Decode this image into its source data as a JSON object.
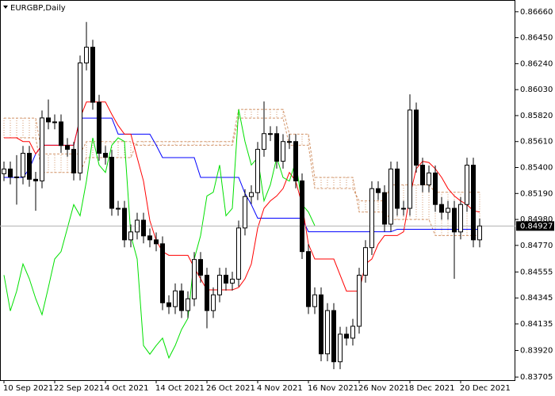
{
  "chart_data": {
    "type": "candlestick",
    "title": "EURGBP,Daily",
    "categories": [
      "10 Sep 2021",
      null,
      null,
      null,
      null,
      null,
      null,
      null,
      "22 Sep 2021",
      null,
      null,
      null,
      null,
      null,
      null,
      null,
      "4 Oct 2021",
      null,
      null,
      null,
      null,
      null,
      null,
      null,
      "14 Oct 2021",
      null,
      null,
      null,
      null,
      null,
      null,
      null,
      "26 Oct 2021",
      null,
      null,
      null,
      null,
      null,
      null,
      null,
      "4 Nov 2021",
      null,
      null,
      null,
      null,
      null,
      null,
      null,
      "16 Nov 2021",
      null,
      null,
      null,
      null,
      null,
      null,
      null,
      "26 Nov 2021",
      null,
      null,
      null,
      null,
      null,
      null,
      null,
      "8 Dec 2021",
      null,
      null,
      null,
      null,
      null,
      null,
      null,
      "20 Dec 2021",
      null,
      null,
      null
    ],
    "open": [
      0.8535,
      0.85388,
      0.85324,
      0.85324,
      0.85515,
      0.85305,
      0.85292,
      0.85801,
      0.85769,
      0.85769,
      0.85578,
      0.85547,
      0.85356,
      0.86246,
      0.86373,
      0.85928,
      0.85515,
      0.85483,
      0.8507,
      0.8507,
      0.84815,
      0.84879,
      0.84974,
      0.84847,
      0.84815,
      0.84783,
      0.84306,
      0.84275,
      0.84402,
      0.84243,
      0.84338,
      0.84656,
      0.84529,
      0.84243,
      0.8437,
      0.84529,
      0.84465,
      0.84497,
      0.84911,
      0.85165,
      0.85197,
      0.85547,
      0.85674,
      0.85674,
      0.85451,
      0.8561,
      0.8561,
      0.85292,
      0.8472,
      0.84275,
      0.8437,
      0.83893,
      0.84243,
      0.83829,
      0.84052,
      0.8402,
      0.84116,
      0.84529,
      0.84752,
      0.85229,
      0.85197,
      0.84942,
      0.85388,
      0.8507,
      0.8507,
      0.85865,
      0.85419,
      0.8526,
      0.85356,
      0.85101,
      0.85038,
      0.8507,
      0.84879,
      0.85101,
      0.85419,
      0.84815
    ],
    "high": [
      0.85448,
      0.85448,
      0.855,
      0.85575,
      0.85575,
      0.85365,
      0.85861,
      0.8595,
      0.85829,
      0.85829,
      0.85638,
      0.85607,
      0.86306,
      0.86577,
      0.86433,
      0.85988,
      0.85575,
      0.85543,
      0.8513,
      0.8513,
      0.84939,
      0.85034,
      0.85034,
      0.84907,
      0.84875,
      0.84843,
      0.84366,
      0.84462,
      0.84462,
      0.84398,
      0.84716,
      0.84716,
      0.84589,
      0.8443,
      0.84589,
      0.84589,
      0.84557,
      0.84971,
      0.85225,
      0.85257,
      0.85607,
      0.85934,
      0.85734,
      0.85734,
      0.8567,
      0.8567,
      0.8567,
      0.85352,
      0.8478,
      0.8443,
      0.8443,
      0.84303,
      0.84303,
      0.84112,
      0.84112,
      0.84176,
      0.84589,
      0.84812,
      0.85289,
      0.85289,
      0.85257,
      0.85448,
      0.85448,
      0.8513,
      0.85992,
      0.85925,
      0.85479,
      0.85416,
      0.85416,
      0.85161,
      0.8513,
      0.8513,
      0.85161,
      0.85479,
      0.85479,
      0.84987
    ],
    "low": [
      0.8529,
      0.85264,
      0.851,
      0.85264,
      0.85245,
      0.8505,
      0.85232,
      0.85709,
      0.85709,
      0.85518,
      0.85487,
      0.85296,
      0.85296,
      0.86186,
      0.85868,
      0.85455,
      0.85423,
      0.8501,
      0.8501,
      0.84755,
      0.84755,
      0.84819,
      0.84787,
      0.84755,
      0.84723,
      0.84246,
      0.84215,
      0.84215,
      0.84183,
      0.84183,
      0.84278,
      0.84469,
      0.841,
      0.84183,
      0.8431,
      0.84405,
      0.84405,
      0.84437,
      0.84851,
      0.85105,
      0.85137,
      0.85487,
      0.85614,
      0.85391,
      0.85391,
      0.8555,
      0.85232,
      0.8466,
      0.84215,
      0.84215,
      0.83833,
      0.83833,
      0.83769,
      0.83769,
      0.8396,
      0.8396,
      0.84056,
      0.84469,
      0.84692,
      0.85137,
      0.84882,
      0.84882,
      0.8501,
      0.8501,
      0.8501,
      0.85359,
      0.852,
      0.852,
      0.85041,
      0.84978,
      0.84978,
      0.845,
      0.84819,
      0.85041,
      0.84755,
      0.84755
    ],
    "close": [
      0.85388,
      0.85324,
      0.85324,
      0.85515,
      0.85305,
      0.85292,
      0.85801,
      0.85769,
      0.85769,
      0.85578,
      0.85547,
      0.85356,
      0.86246,
      0.86373,
      0.85928,
      0.85515,
      0.85483,
      0.8507,
      0.8507,
      0.84815,
      0.84879,
      0.84974,
      0.84847,
      0.84815,
      0.84783,
      0.84306,
      0.84275,
      0.84402,
      0.84243,
      0.84338,
      0.84656,
      0.84529,
      0.84243,
      0.8437,
      0.84529,
      0.84465,
      0.84497,
      0.84911,
      0.85165,
      0.85197,
      0.85547,
      0.85674,
      0.85674,
      0.85451,
      0.8561,
      0.8561,
      0.85292,
      0.8472,
      0.84275,
      0.8437,
      0.83893,
      0.84243,
      0.83829,
      0.84052,
      0.8402,
      0.84116,
      0.84529,
      0.84752,
      0.85229,
      0.85197,
      0.84942,
      0.85388,
      0.8507,
      0.8507,
      0.85865,
      0.85419,
      0.8526,
      0.85356,
      0.85101,
      0.85038,
      0.8507,
      0.84879,
      0.85101,
      0.85419,
      0.84815,
      0.84927
    ],
    "series": [
      {
        "color": "#d2956a",
        "style": "dashed",
        "values": [
          0.8564,
          0.8564,
          0.8564,
          0.8564,
          0.8564,
          0.8564,
          0.8536,
          0.8536,
          0.8536,
          0.8536,
          0.8536,
          0.8536,
          0.8536,
          0.8548,
          0.8548,
          0.8548,
          0.8548,
          0.8548,
          0.8548,
          0.8548,
          0.8548,
          0.8561,
          0.8561,
          0.8561,
          0.8561,
          0.8561,
          0.8561,
          0.8561,
          0.8561,
          0.8561,
          0.8561,
          0.8561,
          0.8561,
          0.8561,
          0.8561,
          0.8561,
          0.8561,
          0.8587,
          0.8587,
          0.8587,
          0.8587,
          0.8587,
          0.8587,
          0.8587,
          0.8587,
          0.8567,
          0.8567,
          0.8567,
          0.8567,
          0.8532,
          0.8532,
          0.8532,
          0.8532,
          0.8532,
          0.8532,
          0.8532,
          0.8504,
          0.8504,
          0.8504,
          0.8504,
          0.8504,
          0.8498,
          0.8498,
          0.8498,
          0.8498,
          0.8498,
          0.8498,
          0.8498,
          0.8485,
          0.8485,
          0.8485,
          0.8485,
          0.8485,
          0.8485,
          0.8485,
          0.8485
        ]
      },
      {
        "color": "#d2956a",
        "style": "dashed",
        "values": [
          0.858,
          0.858,
          0.858,
          0.858,
          0.858,
          0.858,
          0.8551,
          0.8551,
          0.8551,
          0.8551,
          0.8551,
          0.8551,
          0.8551,
          0.8561,
          0.8561,
          0.8561,
          0.8561,
          0.8561,
          0.8561,
          0.8561,
          0.8561,
          0.8558,
          0.8558,
          0.8558,
          0.8558,
          0.8558,
          0.8558,
          0.8558,
          0.8558,
          0.8558,
          0.8558,
          0.8558,
          0.8558,
          0.8558,
          0.8558,
          0.8558,
          0.8558,
          0.858,
          0.858,
          0.858,
          0.858,
          0.858,
          0.858,
          0.858,
          0.858,
          0.8558,
          0.8558,
          0.8558,
          0.8558,
          0.8523,
          0.8523,
          0.8523,
          0.8523,
          0.8523,
          0.8523,
          0.8523,
          0.8513,
          0.8513,
          0.8513,
          0.8513,
          0.8513,
          0.8526,
          0.8526,
          0.8526,
          0.8526,
          0.8526,
          0.8526,
          0.8526,
          0.852,
          0.852,
          0.852,
          0.852,
          0.852,
          0.852,
          0.852,
          0.852
        ]
      },
      {
        "color": "#0000ff",
        "values": [
          0.8532,
          0.8532,
          0.8532,
          0.8532,
          0.8539,
          0.8551,
          0.8558,
          0.8558,
          0.8558,
          0.8558,
          0.8558,
          0.8558,
          0.858,
          0.858,
          0.858,
          0.858,
          0.858,
          0.858,
          0.8567,
          0.8567,
          0.8567,
          0.8567,
          0.8567,
          0.8567,
          0.8558,
          0.8548,
          0.8548,
          0.8548,
          0.8548,
          0.8548,
          0.8548,
          0.8532,
          0.8532,
          0.8532,
          0.8532,
          0.8532,
          0.8532,
          0.8532,
          0.8519,
          0.851,
          0.8499,
          0.8499,
          0.8499,
          0.8499,
          0.8499,
          0.8499,
          0.8499,
          0.8499,
          0.8488,
          0.8488,
          0.8488,
          0.8488,
          0.8488,
          0.8488,
          0.8488,
          0.8488,
          0.8488,
          0.8488,
          0.8488,
          0.8488,
          0.8488,
          0.8488,
          0.849,
          0.849,
          0.849,
          0.849,
          0.849,
          0.849,
          0.849,
          0.849,
          0.849,
          0.849,
          0.849,
          0.849,
          0.849,
          0.849
        ]
      },
      {
        "color": "#ff0000",
        "values": [
          0.8564,
          0.8564,
          0.8564,
          0.8561,
          0.8561,
          0.8551,
          0.8558,
          0.8558,
          0.8558,
          0.8558,
          0.8558,
          0.8558,
          0.858,
          0.8593,
          0.8593,
          0.8593,
          0.8593,
          0.8583,
          0.8574,
          0.8567,
          0.8567,
          0.8548,
          0.8529,
          0.8497,
          0.8481,
          0.8472,
          0.8469,
          0.8469,
          0.8469,
          0.8469,
          0.8459,
          0.845,
          0.8441,
          0.8441,
          0.8441,
          0.8441,
          0.8441,
          0.8443,
          0.845,
          0.8462,
          0.8491,
          0.8507,
          0.8513,
          0.8517,
          0.8523,
          0.8536,
          0.8529,
          0.851,
          0.8478,
          0.8466,
          0.8466,
          0.8466,
          0.8466,
          0.8453,
          0.844,
          0.844,
          0.844,
          0.8462,
          0.8466,
          0.8478,
          0.8485,
          0.8485,
          0.8485,
          0.8488,
          0.8517,
          0.8539,
          0.8545,
          0.8544,
          0.8539,
          0.8532,
          0.8523,
          0.8517,
          0.8513,
          0.851,
          0.8505,
          0.8504
        ]
      },
      {
        "color": "#00e000",
        "values": [
          0.8453,
          0.8424,
          0.844,
          0.8462,
          0.845,
          0.8434,
          0.8421,
          0.8443,
          0.8466,
          0.8472,
          0.8491,
          0.851,
          0.8501,
          0.8529,
          0.8564,
          0.8542,
          0.8536,
          0.8558,
          0.8564,
          0.8561,
          0.8485,
          0.8466,
          0.8396,
          0.8389,
          0.8396,
          0.8402,
          0.8386,
          0.8396,
          0.8409,
          0.8418,
          0.8466,
          0.8485,
          0.8517,
          0.852,
          0.8542,
          0.8501,
          0.8507,
          0.8587,
          0.8561,
          0.8542,
          0.8548,
          0.8513,
          0.8526,
          0.8548,
          0.8532,
          0.8529,
          0.8545,
          0.851,
          0.8504,
          0.8493,
          null,
          null,
          null,
          null,
          null,
          null,
          null,
          null,
          null,
          null,
          null,
          null,
          null,
          null,
          null,
          null,
          null,
          null,
          null,
          null,
          null,
          null,
          null,
          null,
          null,
          null
        ]
      }
    ],
    "ylim": [
      0.8368,
      0.86755
    ],
    "yticks": [
      {
        "value": 0.8666,
        "label": "0.86660"
      },
      {
        "value": 0.8645,
        "label": "0.86450"
      },
      {
        "value": 0.8624,
        "label": "0.86240"
      },
      {
        "value": 0.8603,
        "label": "0.86030"
      },
      {
        "value": 0.8582,
        "label": "0.85820"
      },
      {
        "value": 0.8561,
        "label": "0.85610"
      },
      {
        "value": 0.854,
        "label": "0.85400"
      },
      {
        "value": 0.8519,
        "label": "0.85190"
      },
      {
        "value": 0.8498,
        "label": "0.84980"
      },
      {
        "value": 0.8477,
        "label": "0.84770"
      },
      0.84555,
      0.84345,
      0.84135,
      {
        "value": 0.8392,
        "label": "0.83920"
      },
      0.83705
    ],
    "current_price": 0.84927,
    "up_color": "#ffffff",
    "down_color": "#000000"
  }
}
